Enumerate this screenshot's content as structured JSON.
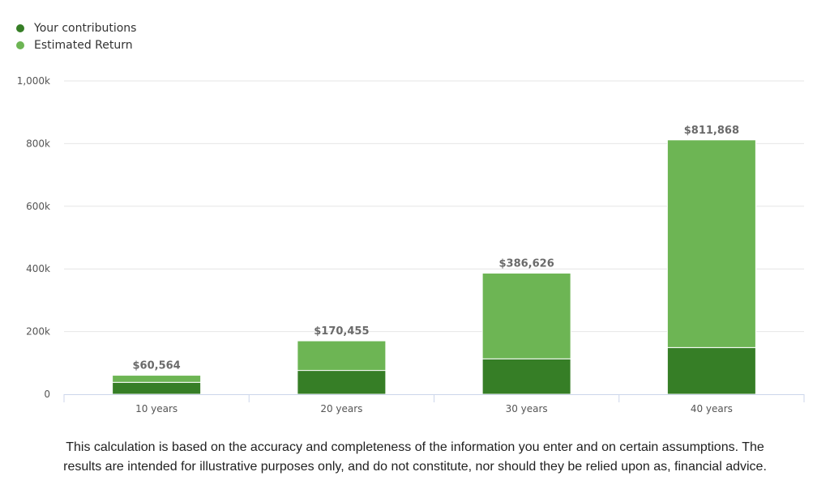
{
  "legend": {
    "items": [
      {
        "label": "Your contributions",
        "color": "#367E26"
      },
      {
        "label": "Estimated Return",
        "color": "#6DB554"
      }
    ]
  },
  "chart_data": {
    "type": "bar",
    "stacked": true,
    "categories": [
      "10 years",
      "20 years",
      "30 years",
      "40 years"
    ],
    "series": [
      {
        "name": "Your contributions",
        "color": "#367E26",
        "values": [
          38000,
          76000,
          113000,
          149000
        ]
      },
      {
        "name": "Estimated Return",
        "color": "#6DB554",
        "values": [
          22564,
          94455,
          273626,
          662868
        ]
      }
    ],
    "totals": [
      60564,
      170455,
      386626,
      811868
    ],
    "total_labels": [
      "$60,564",
      "$170,455",
      "$386,626",
      "$811,868"
    ],
    "ylim": [
      0,
      1000000
    ],
    "yticks": [
      0,
      200000,
      400000,
      600000,
      800000,
      1000000
    ],
    "ytick_labels": [
      "0",
      "200k",
      "400k",
      "600k",
      "800k",
      "1,000k"
    ],
    "grid": true,
    "legend_position": "top-left",
    "title": "",
    "xlabel": "",
    "ylabel": ""
  },
  "disclaimer": {
    "line1": "This calculation is based on the accuracy and completeness of the information you enter and on certain assumptions. The",
    "line2": "results are intended for illustrative purposes only, and do not constitute, nor should they be relied upon as, financial advice."
  }
}
